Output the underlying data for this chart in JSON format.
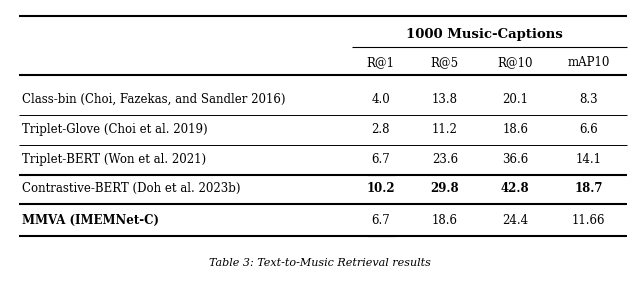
{
  "title": "1000 Music-Captions",
  "caption": "Table 3: Text-to-Music Retrieval results",
  "columns": [
    "R@1",
    "R@5",
    "R@10",
    "mAP10"
  ],
  "rows": [
    {
      "method": "Class-bin (Choi, Fazekas, and Sandler 2016)",
      "values": [
        "4.0",
        "13.8",
        "20.1",
        "8.3"
      ],
      "bold": [
        false,
        false,
        false,
        false
      ],
      "underline": [
        false,
        false,
        false,
        false
      ],
      "method_bold": false
    },
    {
      "method": "Triplet-Glove (Choi et al. 2019)",
      "values": [
        "2.8",
        "11.2",
        "18.6",
        "6.6"
      ],
      "bold": [
        false,
        false,
        false,
        false
      ],
      "underline": [
        false,
        false,
        false,
        false
      ],
      "method_bold": false
    },
    {
      "method": "Triplet-BERT (Won et al. 2021)",
      "values": [
        "6.7",
        "23.6",
        "36.6",
        "14.1"
      ],
      "bold": [
        false,
        false,
        false,
        false
      ],
      "underline": [
        true,
        false,
        false,
        false
      ],
      "method_bold": false
    },
    {
      "method": "Contrastive-BERT (Doh et al. 2023b)",
      "values": [
        "10.2",
        "29.8",
        "42.8",
        "18.7"
      ],
      "bold": [
        true,
        true,
        true,
        true
      ],
      "underline": [
        false,
        false,
        false,
        false
      ],
      "method_bold": false
    },
    {
      "method": "MMVA (IMEMNet-C)",
      "values": [
        "6.7",
        "18.6",
        "24.4",
        "11.66"
      ],
      "bold": [
        false,
        false,
        false,
        false
      ],
      "underline": [
        true,
        false,
        false,
        false
      ],
      "method_bold": true
    }
  ],
  "thick_line_rows": [
    2,
    3
  ],
  "figsize": [
    6.4,
    2.84
  ],
  "dpi": 100,
  "bg_color": "#ffffff"
}
